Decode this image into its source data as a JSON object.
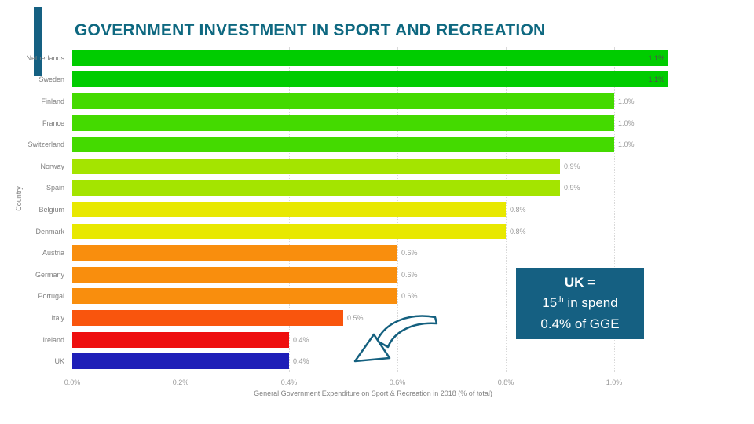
{
  "slide": {
    "title": "GOVERNMENT INVESTMENT IN SPORT AND RECREATION"
  },
  "colors": {
    "accent_teal": "#156082",
    "title_teal": "#0e6880",
    "grid": "#d9d9d9",
    "axis_text": "#808080"
  },
  "chart_data": {
    "type": "bar",
    "orientation": "horizontal",
    "title": "",
    "categories": [
      "Netherlands",
      "Sweden",
      "Finland",
      "France",
      "Switzerland",
      "Norway",
      "Spain",
      "Belgium",
      "Denmark",
      "Austria",
      "Germany",
      "Portugal",
      "Italy",
      "Ireland",
      "UK"
    ],
    "values": [
      1.1,
      1.1,
      1.0,
      1.0,
      1.0,
      0.9,
      0.9,
      0.8,
      0.8,
      0.6,
      0.6,
      0.6,
      0.5,
      0.4,
      0.4
    ],
    "value_labels": [
      "1.1%",
      "1.1%",
      "1.0%",
      "1.0%",
      "1.0%",
      "0.9%",
      "0.9%",
      "0.8%",
      "0.8%",
      "0.6%",
      "0.6%",
      "0.6%",
      "0.5%",
      "0.4%",
      "0.4%"
    ],
    "bar_colors": [
      "#00cc00",
      "#00cc00",
      "#44da00",
      "#44da00",
      "#44da00",
      "#a4e400",
      "#a4e400",
      "#e8e800",
      "#e8e800",
      "#f98e0d",
      "#f98e0d",
      "#f98e0d",
      "#f9550d",
      "#ee0f0f",
      "#1f1fb8"
    ],
    "xlabel": "General Government Expenditure on Sport & Recreation in 2018 (% of total)",
    "ylabel": "Country",
    "x_ticks": [
      "0.0%",
      "0.2%",
      "0.4%",
      "0.6%",
      "0.8%",
      "1.0%"
    ],
    "x_tick_values": [
      0,
      0.2,
      0.4,
      0.6,
      0.8,
      1.0
    ],
    "xlim": [
      0,
      1.1
    ],
    "grid": "vertical-dotted",
    "legend": "none"
  },
  "callout": {
    "line1": "UK =",
    "line2_num": "15",
    "line2_sup": "th",
    "line2_rest": " in spend",
    "line3": "0.4% of GGE"
  }
}
